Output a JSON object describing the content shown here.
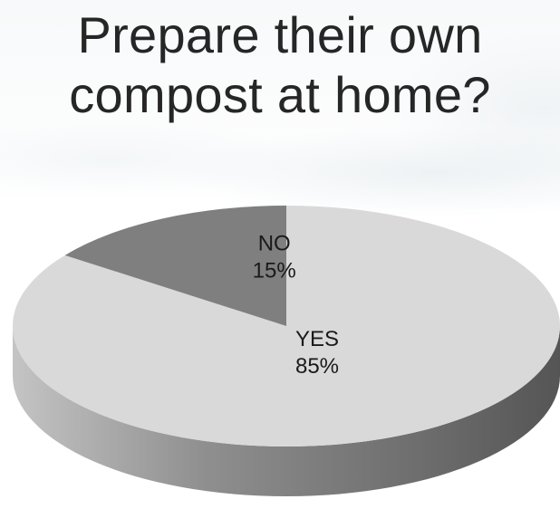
{
  "title_lines": [
    "Prepare their own",
    "compost at home?"
  ],
  "chart_data": {
    "type": "pie",
    "style": "3d",
    "title": "Prepare their own compost at home?",
    "slices": [
      {
        "label": "YES",
        "value": 85,
        "value_label": "85%",
        "color": "#d9d9d9"
      },
      {
        "label": "NO",
        "value": 15,
        "value_label": "15%",
        "color": "#7f7f7f"
      }
    ],
    "legend": "none"
  }
}
